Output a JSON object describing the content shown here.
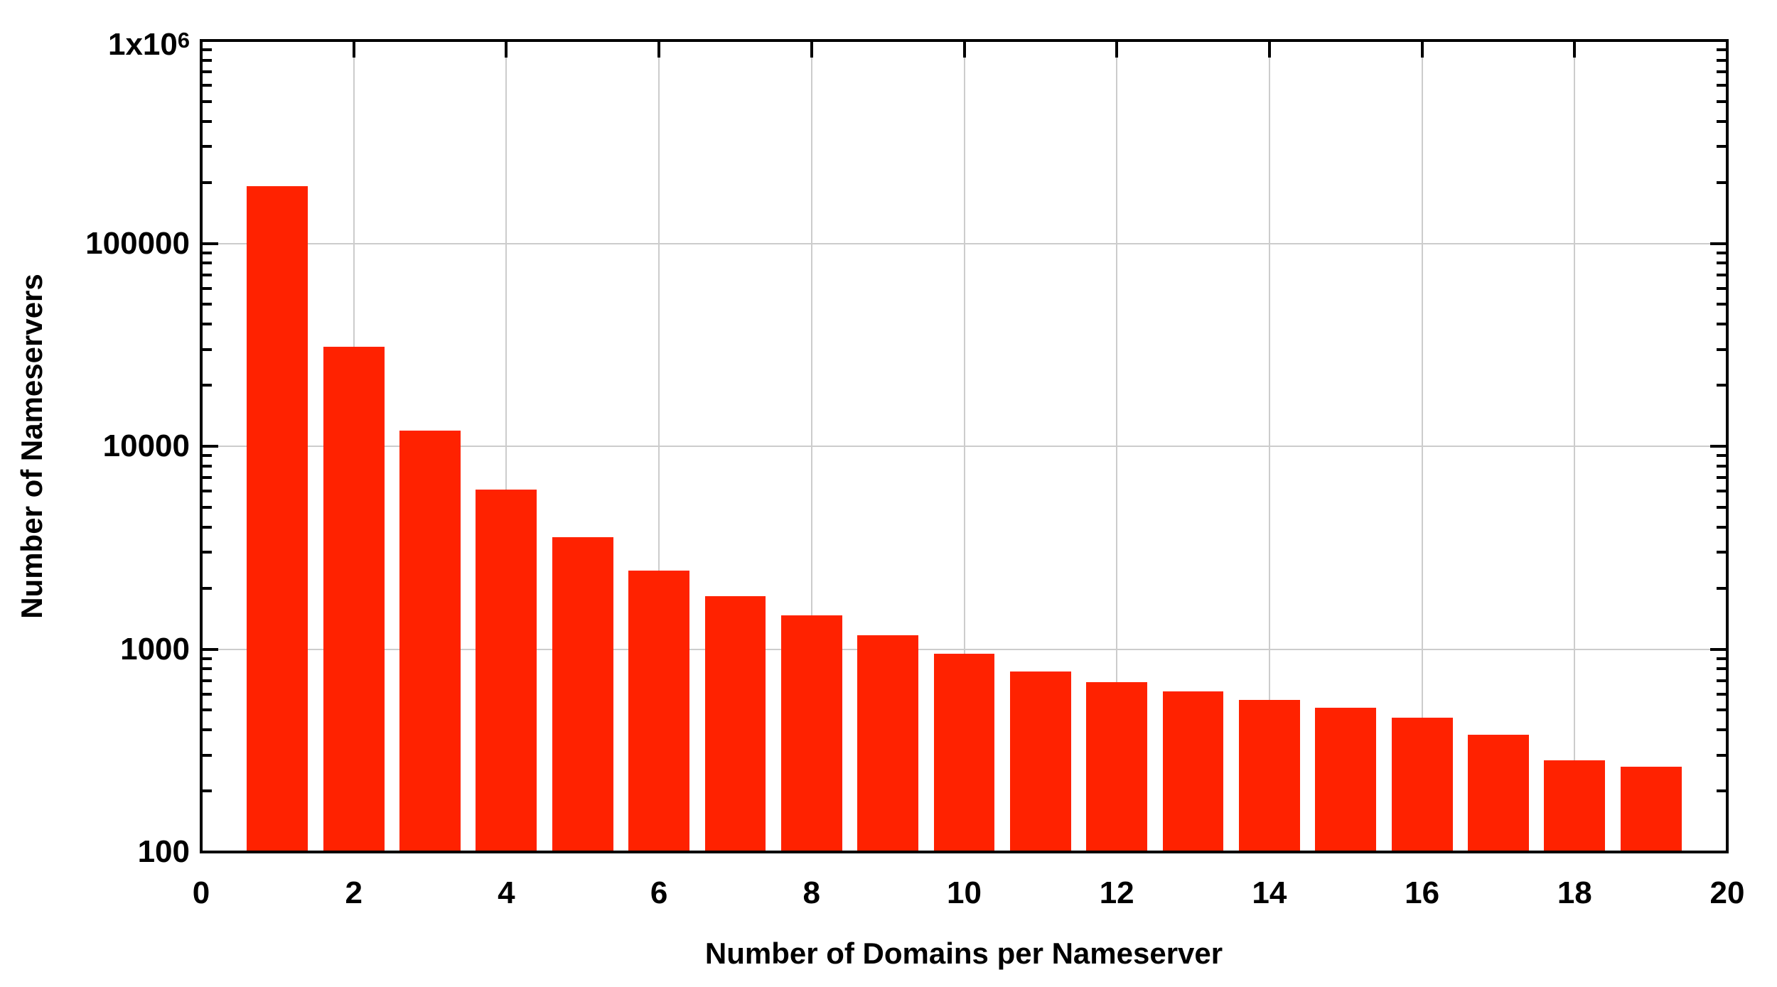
{
  "chart_data": {
    "type": "bar",
    "title": "",
    "xlabel": "Number of Domains per Nameserver",
    "ylabel": "Number of Nameservers",
    "x": [
      1,
      2,
      3,
      4,
      5,
      6,
      7,
      8,
      9,
      10,
      11,
      12,
      13,
      14,
      15,
      16,
      17,
      18,
      19
    ],
    "values": [
      191000,
      31000,
      11900,
      6100,
      3550,
      2430,
      1830,
      1470,
      1175,
      950,
      775,
      685,
      617,
      562,
      516,
      458,
      377,
      282,
      264
    ],
    "xlim": [
      0,
      20
    ],
    "y_scale": "log",
    "ylim": [
      100,
      1000000
    ],
    "x_tick_values": [
      0,
      2,
      4,
      6,
      8,
      10,
      12,
      14,
      16,
      18,
      20
    ],
    "y_tick_values": [
      100,
      1000,
      10000,
      100000,
      1000000
    ],
    "y_tick_labels": [
      "100",
      "1000",
      "10000",
      "100000",
      "1x10^6"
    ],
    "grid": true,
    "legend_position": "none",
    "bar_width_units": 0.8,
    "bar_color": "#ff2200"
  },
  "colors": {
    "bar": "#ff2200",
    "grid": "#cccccc",
    "axis": "#000000",
    "background": "#ffffff"
  }
}
